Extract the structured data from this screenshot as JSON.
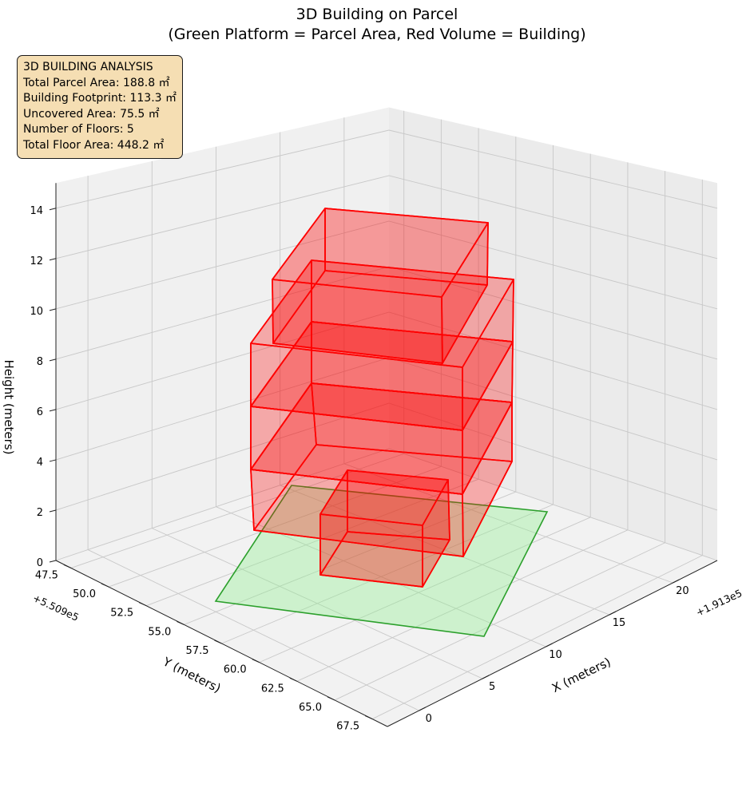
{
  "chart_data": {
    "type": "3d-bar",
    "title_line1": "3D Building on Parcel",
    "title_line2": "(Green Platform = Parcel Area, Red Volume = Building)",
    "xlabel": "X (meters)",
    "ylabel": "Y (meters)",
    "zlabel": "Height (meters)",
    "x_offset_label": "+1.913e5",
    "y_offset_label": "+5.509e5",
    "x_ticks": [
      "0",
      "5",
      "10",
      "15",
      "20"
    ],
    "y_ticks": [
      "47.5",
      "50.0",
      "52.5",
      "55.0",
      "57.5",
      "60.0",
      "62.5",
      "65.0",
      "67.5"
    ],
    "z_ticks": [
      "0",
      "2",
      "4",
      "6",
      "8",
      "10",
      "12",
      "14"
    ],
    "xlim": [
      -2.5,
      23.5
    ],
    "ylim": [
      46.5,
      68.5
    ],
    "zlim": [
      0,
      15
    ],
    "grid": true,
    "series": [
      {
        "name": "Parcel Area",
        "color": "#2ca02c",
        "fill": "#90ee90"
      },
      {
        "name": "Building",
        "color": "#ff0000",
        "fill": "#ff0000"
      }
    ],
    "info_box": [
      "3D BUILDING ANALYSIS",
      "Total Parcel Area: 188.8 ㎡",
      "Building Footprint: 113.3 ㎡",
      "Uncovered Area: 75.5 ㎡",
      "Number of Floors: 5",
      "Total Floor Area: 448.2 ㎡"
    ]
  }
}
